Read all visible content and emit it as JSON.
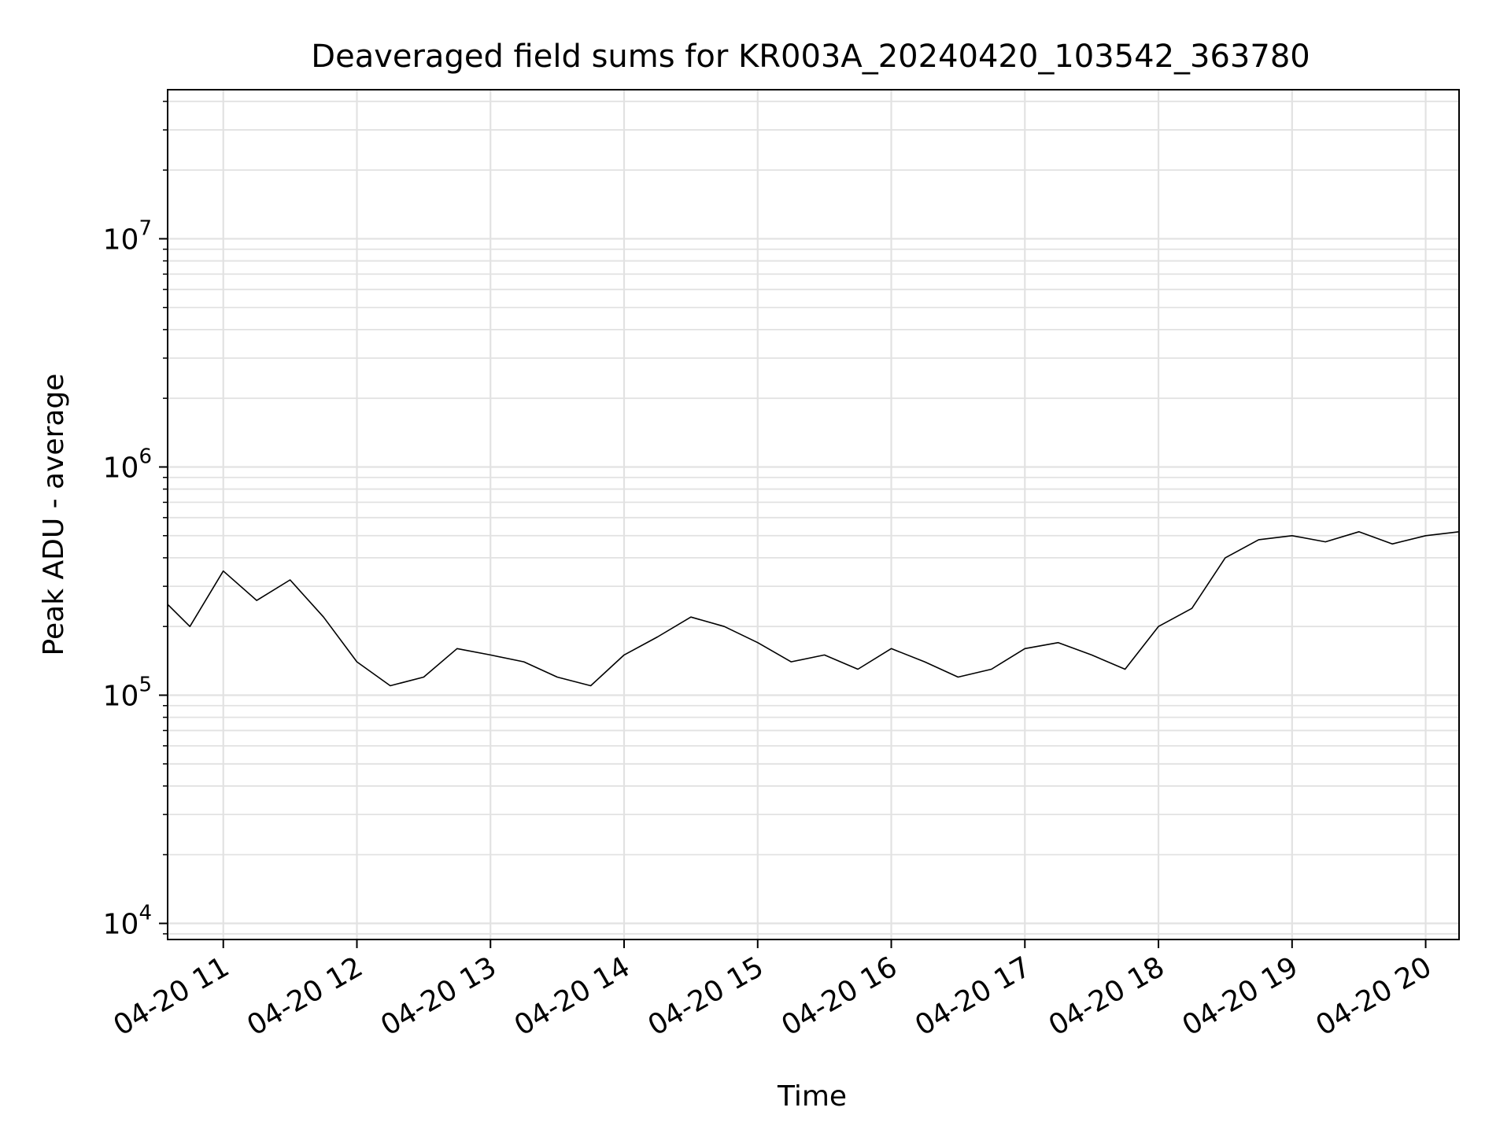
{
  "chart_data": {
    "type": "line",
    "title": "Deaveraged field sums for KR003A_20240420_103542_363780",
    "xlabel": "Time",
    "ylabel": "Peak ADU - average",
    "y_scale": "log",
    "xlim": [
      "2024-04-20 10:35",
      "2024-04-20 20:15"
    ],
    "ylim": [
      8500,
      45000000
    ],
    "x_tick_labels": [
      "04-20 11",
      "04-20 12",
      "04-20 13",
      "04-20 14",
      "04-20 15",
      "04-20 16",
      "04-20 17",
      "04-20 18",
      "04-20 19",
      "04-20 20"
    ],
    "y_tick_labels": [
      {
        "base": "10",
        "exp": "4"
      },
      {
        "base": "10",
        "exp": "5"
      },
      {
        "base": "10",
        "exp": "6"
      },
      {
        "base": "10",
        "exp": "7"
      }
    ],
    "grid": true,
    "line_color": "#000000",
    "series": [
      {
        "x": [
          "2024-04-20 10:35",
          "2024-04-20 10:45",
          "2024-04-20 11:00",
          "2024-04-20 11:15",
          "2024-04-20 11:30",
          "2024-04-20 11:45",
          "2024-04-20 12:00",
          "2024-04-20 12:15",
          "2024-04-20 12:30",
          "2024-04-20 12:45",
          "2024-04-20 13:00",
          "2024-04-20 13:15",
          "2024-04-20 13:30",
          "2024-04-20 13:45",
          "2024-04-20 14:00",
          "2024-04-20 14:15",
          "2024-04-20 14:30",
          "2024-04-20 14:45",
          "2024-04-20 15:00",
          "2024-04-20 15:15",
          "2024-04-20 15:30",
          "2024-04-20 15:45",
          "2024-04-20 16:00",
          "2024-04-20 16:15",
          "2024-04-20 16:30",
          "2024-04-20 16:45",
          "2024-04-20 17:00",
          "2024-04-20 17:15",
          "2024-04-20 17:30",
          "2024-04-20 17:45",
          "2024-04-20 18:00",
          "2024-04-20 18:15",
          "2024-04-20 18:30",
          "2024-04-20 18:45",
          "2024-04-20 19:00",
          "2024-04-20 19:15",
          "2024-04-20 19:30",
          "2024-04-20 19:45",
          "2024-04-20 20:00",
          "2024-04-20 20:15"
        ],
        "y": [
          250000,
          200000,
          350000,
          260000,
          320000,
          220000,
          140000,
          110000,
          120000,
          160000,
          150000,
          140000,
          120000,
          110000,
          150000,
          180000,
          220000,
          200000,
          170000,
          140000,
          150000,
          130000,
          160000,
          140000,
          120000,
          130000,
          160000,
          170000,
          150000,
          130000,
          200000,
          240000,
          400000,
          480000,
          500000,
          470000,
          520000,
          460000,
          500000,
          520000
        ]
      }
    ]
  }
}
